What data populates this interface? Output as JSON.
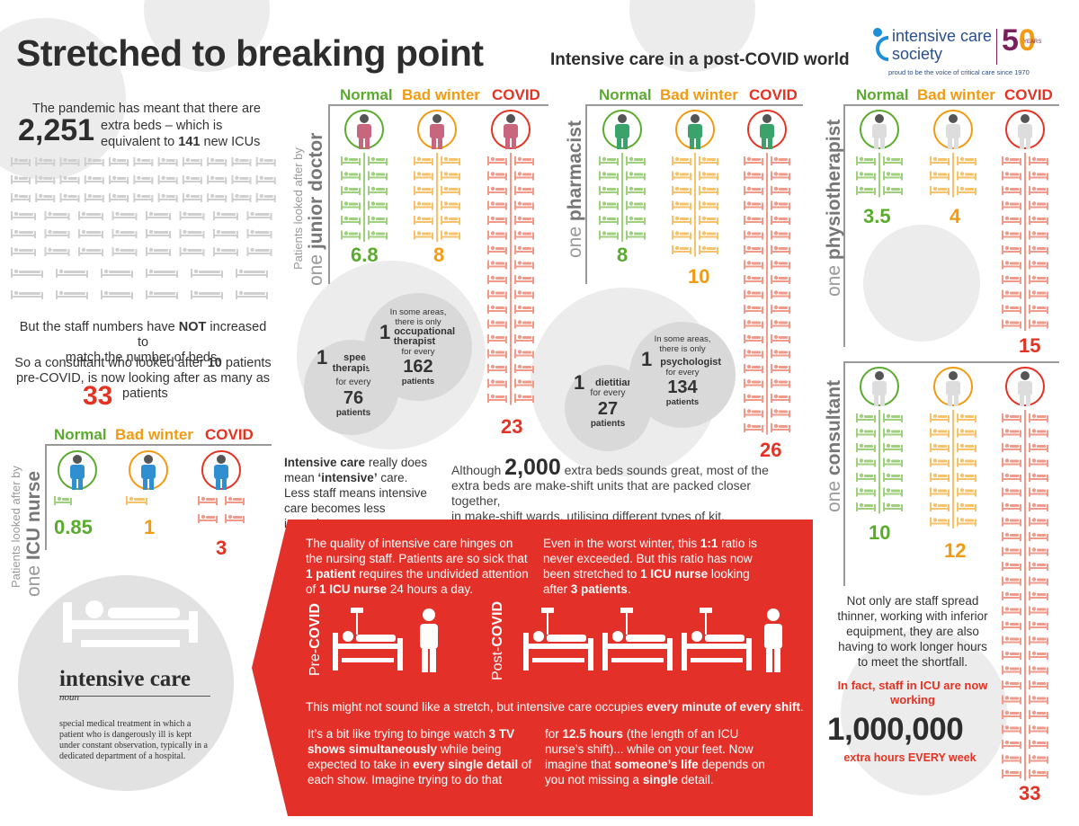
{
  "header": {
    "title": "Stretched to breaking point",
    "subtitle": "Intensive care in a post-COVID world",
    "logo": {
      "line1": "intensive care",
      "line2": "society",
      "years": "YEARS",
      "tagline": "proud to be the voice of critical care since 1970"
    }
  },
  "intro": {
    "text1": "The pandemic has meant that there are",
    "beds": "2,251",
    "text2a": "extra beds – which is",
    "text2b": "equivalent to",
    "icus": "141",
    "text2c": "new ICUs"
  },
  "staff_text": {
    "line1a": "But the staff numbers have",
    "not": "NOT",
    "line1b": "increased to",
    "line2": "match the number of beds.",
    "line3a": "So a consultant who looked after",
    "ten": "10",
    "line3b": "patients",
    "line4": "pre-COVID, is now looking after as many as",
    "big33": "33",
    "line5": "patients"
  },
  "labels": {
    "normal": "Normal",
    "bad_winter": "Bad winter",
    "covid": "COVID",
    "looked_after": "Patients looked after by",
    "one": "one"
  },
  "roles": {
    "junior_doctor": {
      "name": "junior doctor",
      "values": [
        "6.8",
        "8",
        "23"
      ]
    },
    "pharmacist": {
      "name": "pharmacist",
      "values": [
        "8",
        "10",
        "26"
      ]
    },
    "physiotherapist": {
      "name": "physiotherapist",
      "values": [
        "3.5",
        "4",
        "15"
      ]
    },
    "consultant": {
      "name": "consultant",
      "values": [
        "10",
        "12",
        "33"
      ]
    },
    "icu_nurse": {
      "name": "ICU nurse",
      "values": [
        "0.85",
        "1",
        "3"
      ]
    }
  },
  "bubbles": {
    "speech": {
      "one": "1",
      "role": "speech therapist",
      "for": "for every",
      "num": "76",
      "unit": "patients"
    },
    "occupational": {
      "intro": "In some areas, there is only",
      "one": "1",
      "role": "occupational therapist",
      "for": "for every",
      "num": "162",
      "unit": "patients"
    },
    "dietitian": {
      "one": "1",
      "role": "dietitian",
      "for": "for every",
      "num": "27",
      "unit": "patients"
    },
    "psychologist": {
      "intro": "In some areas, there is only",
      "one": "1",
      "role": "psychologist",
      "for": "for every",
      "num": "134",
      "unit": "patients"
    }
  },
  "intensive_note": {
    "bold1": "Intensive care",
    "t1": "really does mean",
    "bold2": "‘intensive’",
    "t2": "care. Less staff means intensive care becomes less intensive."
  },
  "beds_note": {
    "t1": "Although",
    "big": "2,000",
    "t2": "extra beds sounds great, most of the",
    "t3": "extra beds are make-shift units that are packed closer together,",
    "t4": "in make-shift wards, utilising different types of kit."
  },
  "panel": {
    "p1a": "The quality of intensive care hinges on the nursing staff. Patients are so sick that",
    "p1b": "1 patient",
    "p1c": "requires the undivided attention of",
    "p1d": "1 ICU nurse",
    "p1e": "24 hours a day.",
    "p2a": "Even in the worst winter, this",
    "p2b": "1:1",
    "p2c": "ratio is never exceeded. But this ratio has now been stretched to",
    "p2d": "1 ICU nurse",
    "p2e": "looking after",
    "p2f": "3 patients",
    "p2g": ".",
    "pre_label": "Pre-",
    "pre_bold": "COVID",
    "post_label": "Post-",
    "post_bold": "COVID",
    "stretch_a": "This might not sound like a stretch, but intensive care occupies",
    "stretch_b": "every minute of every shift",
    "stretch_c": ".",
    "binge_a": "It’s a bit like trying to binge watch",
    "binge_b": "3 TV shows simultaneously",
    "binge_c": "while being expected to take in",
    "binge_d": "every single detail",
    "binge_e": "of each show. Imagine trying to do that",
    "for_a": "for",
    "for_b": "12.5 hours",
    "for_c": "(the length of an ICU nurse’s shift)... while on your feet. Now imagine that",
    "for_d": "someone’s life",
    "for_e": "depends on you not missing a",
    "for_f": "single",
    "for_g": "detail."
  },
  "definition": {
    "word": "intensive care",
    "pos": "noun",
    "text": "special medical treatment in which a patient who is dangerously ill is kept under constant observation, typically in a dedicated department of a hospital."
  },
  "hours": {
    "t1": "Not only are staff spread thinner, working with inferior equipment, they are also having to work longer hours to meet the shortfall.",
    "t2": "In fact, staff in ICU are now working",
    "big": "1,000,000",
    "t3": "extra hours EVERY week"
  },
  "colors": {
    "green": "#5aab2d",
    "orange": "#f29b12",
    "red": "#e53323",
    "bed_green": "#9fd07e",
    "bed_orange": "#f7c26a",
    "bed_red": "#f19a8a",
    "panel": "#e3312a"
  }
}
